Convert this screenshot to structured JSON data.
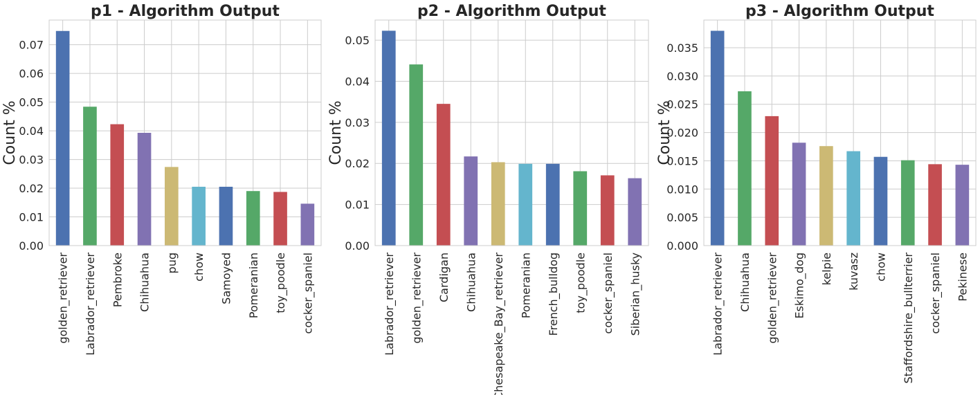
{
  "colors": [
    "#4c72b0",
    "#55a868",
    "#c44e52",
    "#8172b2",
    "#ccb974",
    "#64b5cd"
  ],
  "chart_data": [
    {
      "type": "bar",
      "title": "p1 - Algorithm Output",
      "ylabel": "Count %",
      "xlabel": "",
      "grid": true,
      "ylim": [
        0,
        0.0786
      ],
      "yticks": [
        0,
        0.01,
        0.02,
        0.03,
        0.04,
        0.05,
        0.06,
        0.07
      ],
      "ytick_labels": [
        "0.00",
        "0.01",
        "0.02",
        "0.03",
        "0.04",
        "0.05",
        "0.06",
        "0.07"
      ],
      "categories": [
        "golden_retriever",
        "Labrador_retriever",
        "Pembroke",
        "Chihuahua",
        "pug",
        "chow",
        "Samoyed",
        "Pomeranian",
        "toy_poodle",
        "cocker_spaniel"
      ],
      "values": [
        0.0748,
        0.0484,
        0.0423,
        0.0393,
        0.0274,
        0.0205,
        0.0205,
        0.019,
        0.0187,
        0.0146
      ]
    },
    {
      "type": "bar",
      "title": "p2 - Algorithm Output",
      "ylabel": "Count %",
      "xlabel": "",
      "grid": true,
      "ylim": [
        0,
        0.0549
      ],
      "yticks": [
        0,
        0.01,
        0.02,
        0.03,
        0.04,
        0.05
      ],
      "ytick_labels": [
        "0.00",
        "0.01",
        "0.02",
        "0.03",
        "0.04",
        "0.05"
      ],
      "categories": [
        "Labrador_retriever",
        "golden_retriever",
        "Cardigan",
        "Chihuahua",
        "Chesapeake_Bay_retriever",
        "Pomeranian",
        "French_bulldog",
        "toy_poodle",
        "cocker_spaniel",
        "Siberian_husky"
      ],
      "values": [
        0.0523,
        0.0441,
        0.0345,
        0.0217,
        0.0203,
        0.0199,
        0.0199,
        0.0181,
        0.0171,
        0.0164
      ]
    },
    {
      "type": "bar",
      "title": "p3 - Algorithm Output",
      "ylabel": "Count %",
      "xlabel": "",
      "grid": true,
      "ylim": [
        0,
        0.0399
      ],
      "yticks": [
        0,
        0.005,
        0.01,
        0.015,
        0.02,
        0.025,
        0.03,
        0.035
      ],
      "ytick_labels": [
        "0.000",
        "0.005",
        "0.010",
        "0.015",
        "0.020",
        "0.025",
        "0.030",
        "0.035"
      ],
      "categories": [
        "Labrador_retriever",
        "Chihuahua",
        "golden_retriever",
        "Eskimo_dog",
        "kelpie",
        "kuvasz",
        "chow",
        "Staffordshire_bullterrier",
        "cocker_spaniel",
        "Pekinese"
      ],
      "values": [
        0.038,
        0.0273,
        0.0229,
        0.0182,
        0.0176,
        0.0167,
        0.0157,
        0.0151,
        0.0144,
        0.0143
      ]
    }
  ]
}
